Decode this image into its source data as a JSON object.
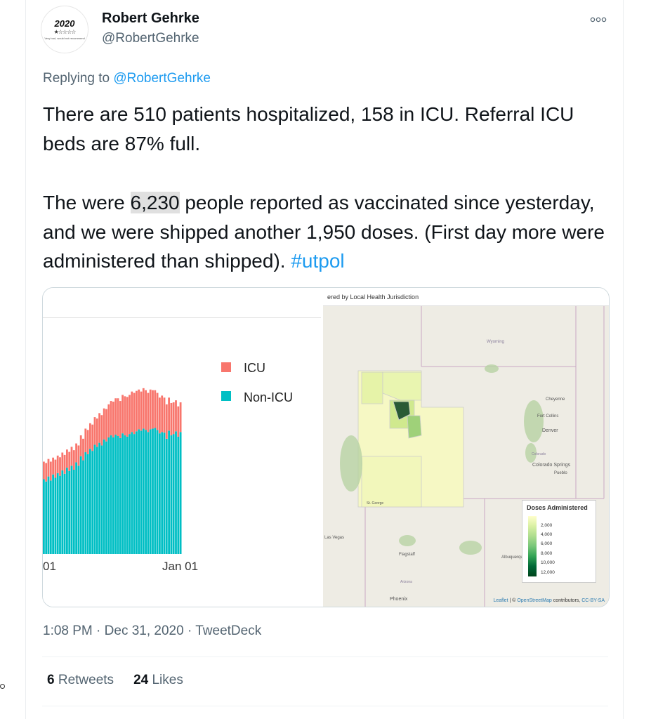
{
  "author": {
    "name": "Robert Gehrke",
    "handle": "@RobertGehrke",
    "avatar": {
      "year": "2020",
      "stars": "★☆☆☆☆",
      "tagline": "Very bad, would not recommend"
    }
  },
  "more_icon": "more-horizontal-icon",
  "reply": {
    "prefix": "Replying to ",
    "handle": "@RobertGehrke"
  },
  "text": {
    "p1": "There are 510 patients hospitalized, 158 in ICU. Referral ICU beds are 87% full.",
    "p2_a": "The were ",
    "p2_highlight": "6,230",
    "p2_b": " people reported as vaccinated since yesterday, and we were shipped another 1,950 doses. (First day more were administered than shipped). ",
    "hashtag": "#utpol"
  },
  "chart_data": {
    "type": "bar",
    "stacked": true,
    "x_tick_labels": [
      "01",
      "Jan 01"
    ],
    "legend": [
      "ICU",
      "Non-ICU"
    ],
    "legend_position": "top-right",
    "colors": {
      "ICU": "#f8766d",
      "Non-ICU": "#00bfc4"
    },
    "series": [
      {
        "name": "Non-ICU",
        "values": [
          222,
          215,
          230,
          218,
          236,
          226,
          240,
          232,
          248,
          238,
          256,
          246,
          262,
          250,
          272,
          262,
          290,
          278,
          302,
          296,
          312,
          306,
          324,
          318,
          330,
          322,
          340,
          334,
          346,
          352,
          346,
          354,
          350,
          344,
          358,
          352,
          348,
          356,
          362,
          356,
          364,
          370,
          366,
          372,
          368,
          362,
          370,
          372,
          374,
          368,
          358,
          362,
          360,
          342,
          366,
          352,
          356,
          364,
          348,
          362
        ]
      },
      {
        "name": "ICU",
        "values": [
          52,
          55,
          52,
          56,
          50,
          54,
          52,
          55,
          53,
          56,
          54,
          57,
          56,
          58,
          56,
          60,
          62,
          64,
          70,
          72,
          76,
          78,
          82,
          84,
          88,
          90,
          92,
          96,
          98,
          102,
          106,
          108,
          112,
          110,
          114,
          116,
          118,
          116,
          120,
          122,
          120,
          118,
          116,
          120,
          118,
          116,
          118,
          114,
          112,
          110,
          106,
          108,
          104,
          102,
          98,
          96,
          94,
          92,
          90,
          88
        ]
      }
    ]
  },
  "map": {
    "title": "Doses Administered by Local Health Jurisdiction",
    "title_visible": "ered by Local Health Jurisdiction",
    "places": [
      "Wyoming",
      "Cheyenne",
      "Fort Collins",
      "Denver",
      "Colorado",
      "Colorado Springs",
      "Pueblo",
      "Albuquerque",
      "Flagstaff",
      "Arizona",
      "Phoenix",
      "Las Vegas",
      "St. George"
    ],
    "legend": {
      "title": "Doses Administered",
      "labels": [
        "2,000",
        "4,000",
        "6,000",
        "8,000",
        "10,000",
        "12,000"
      ],
      "colors": [
        "#ffffcc",
        "#d9f0a3",
        "#addd8e",
        "#78c679",
        "#31a354",
        "#006837",
        "#00441b"
      ]
    },
    "attribution": {
      "leaflet": "Leaflet",
      "sep": " | © ",
      "osm": "OpenStreetMap",
      "mid": " contributors, ",
      "license": "CC-BY-SA"
    }
  },
  "meta": {
    "time": "1:08 PM",
    "date": "Dec 31, 2020",
    "source": "TweetDeck",
    "dot": " · "
  },
  "stats": {
    "retweets_count": "6",
    "retweets_label": " Retweets",
    "likes_count": "24",
    "likes_label": " Likes"
  }
}
